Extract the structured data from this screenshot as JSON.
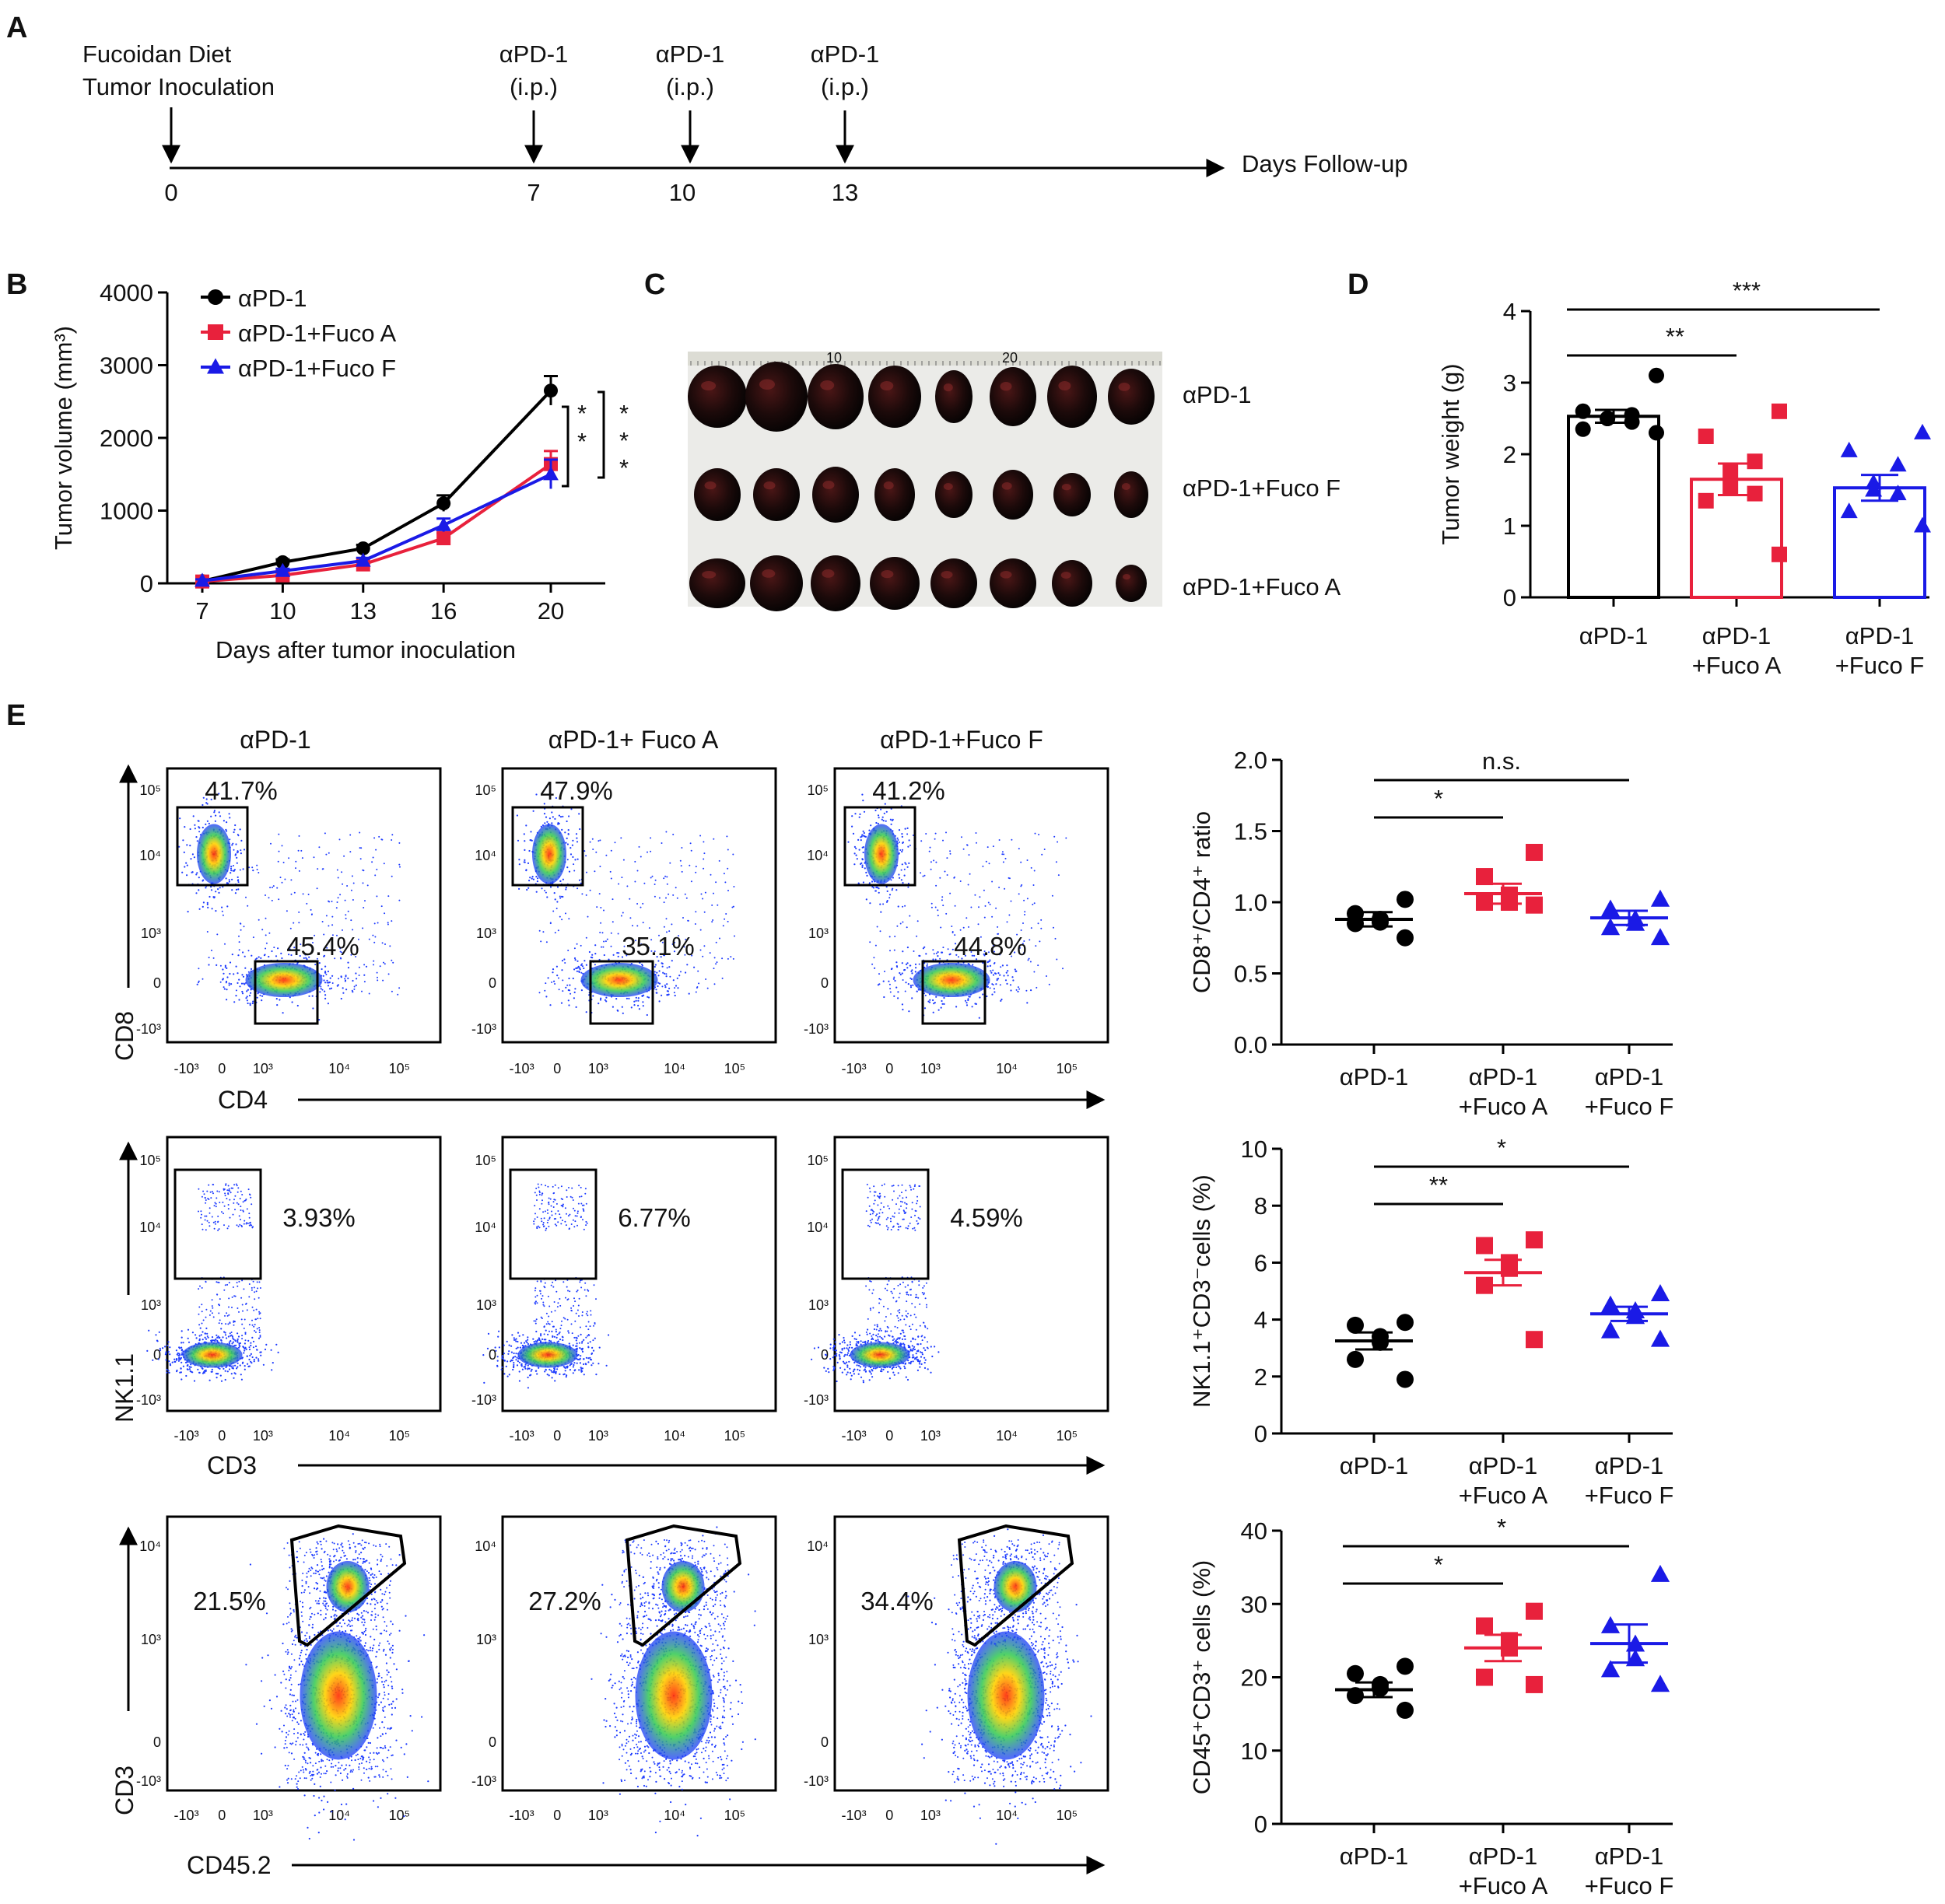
{
  "colors": {
    "control": "#000000",
    "fuco_a": "#e8213c",
    "fuco_f": "#1a1ae6",
    "photo_bg": "#ebebe8",
    "flow_low": "#1e3cff",
    "flow_high": "#ff2a00"
  },
  "panelA": {
    "label": "A",
    "left_text_1": "Fucoidan Diet",
    "left_text_2": "Tumor Inoculation",
    "events": [
      {
        "day": "0",
        "line1": "",
        "line2": ""
      },
      {
        "day": "7",
        "line1": "αPD-1",
        "line2": "(i.p.)"
      },
      {
        "day": "10",
        "line1": "αPD-1",
        "line2": "(i.p.)"
      },
      {
        "day": "13",
        "line1": "αPD-1",
        "line2": "(i.p.)"
      }
    ],
    "axis_label": "Days Follow-up"
  },
  "panelC": {
    "label": "C",
    "rows": [
      "αPD-1",
      "αPD-1+Fuco F",
      "αPD-1+Fuco A"
    ],
    "ruler_marks": [
      "10",
      "20"
    ]
  },
  "panelE": {
    "label": "E",
    "groups": [
      "αPD-1",
      "αPD-1+ Fuco A",
      "αPD-1+Fuco F"
    ],
    "row1": {
      "y_axis": "CD8",
      "x_axis": "CD4",
      "upper_pct": [
        "41.7%",
        "47.9%",
        "41.2%"
      ],
      "lower_pct": [
        "45.4%",
        "35.1%",
        "44.8%"
      ]
    },
    "row2": {
      "y_axis": "NK1.1",
      "x_axis": "CD3",
      "pct": [
        "3.93%",
        "6.77%",
        "4.59%"
      ]
    },
    "row3": {
      "y_axis": "CD3",
      "x_axis": "CD45.2",
      "pct": [
        "21.5%",
        "27.2%",
        "34.4%"
      ]
    },
    "ticks": {
      "x": [
        "-10³",
        "0",
        "10³",
        "10⁴",
        "10⁵"
      ],
      "y5": [
        "10⁵",
        "10⁴",
        "10³",
        "0",
        "-10³"
      ],
      "y4": [
        "10⁴",
        "10³",
        "0",
        "-10³"
      ]
    }
  },
  "chart_data": [
    {
      "id": "B",
      "type": "line",
      "label": "B",
      "title": "",
      "xlabel": "Days after tumor inoculation",
      "ylabel": "Tumor volume (mm³)",
      "x": [
        7,
        10,
        13,
        16,
        20
      ],
      "xticks": [
        "7",
        "10",
        "13",
        "16",
        "20"
      ],
      "ylim": [
        0,
        4000
      ],
      "yticks": [
        "0",
        "1000",
        "2000",
        "3000",
        "4000"
      ],
      "series": [
        {
          "name": "αPD-1",
          "color": "#000000",
          "marker": "circle",
          "values": [
            30,
            290,
            480,
            1100,
            2650
          ],
          "errors": [
            20,
            40,
            50,
            110,
            200
          ]
        },
        {
          "name": "αPD-1+Fuco A",
          "color": "#e8213c",
          "marker": "square",
          "values": [
            25,
            110,
            260,
            620,
            1640
          ],
          "errors": [
            15,
            25,
            40,
            70,
            180
          ]
        },
        {
          "name": "αPD-1+Fuco F",
          "color": "#1a1ae6",
          "marker": "triangle",
          "values": [
            35,
            170,
            310,
            800,
            1500
          ],
          "errors": [
            20,
            30,
            40,
            90,
            200
          ]
        }
      ],
      "legend": "top-left",
      "significance": [
        "* *",
        "* * *"
      ]
    },
    {
      "id": "D",
      "type": "bar",
      "label": "D",
      "ylabel": "Tumor weight (g)",
      "ylim": [
        0,
        4
      ],
      "yticks": [
        "0",
        "1",
        "2",
        "3",
        "4"
      ],
      "categories": [
        [
          "αPD-1"
        ],
        [
          "αPD-1",
          "+Fuco A"
        ],
        [
          "αPD-1",
          "+Fuco F"
        ]
      ],
      "colors": [
        "#000000",
        "#e8213c",
        "#1a1ae6"
      ],
      "markers": [
        "circle",
        "square",
        "triangle"
      ],
      "means": [
        2.53,
        1.65,
        1.53
      ],
      "sem": [
        0.09,
        0.22,
        0.18
      ],
      "points": [
        [
          3.1,
          2.6,
          2.55,
          2.5,
          2.5,
          2.45,
          2.35,
          2.3
        ],
        [
          2.6,
          2.25,
          1.9,
          1.75,
          1.55,
          1.45,
          1.35,
          0.6
        ],
        [
          2.3,
          2.05,
          1.85,
          1.6,
          1.5,
          1.45,
          1.2,
          1.0
        ]
      ],
      "comparisons": [
        {
          "from": 0,
          "to": 1,
          "label": "**"
        },
        {
          "from": 0,
          "to": 2,
          "label": "***"
        }
      ]
    },
    {
      "id": "E1",
      "type": "scatter",
      "ylabel": "CD8⁺/CD4⁺ ratio",
      "ylim": [
        0,
        2
      ],
      "yticks": [
        "0.0",
        "0.5",
        "1.0",
        "1.5",
        "2.0"
      ],
      "categories": [
        [
          "αPD-1"
        ],
        [
          "αPD-1",
          "+Fuco A"
        ],
        [
          "αPD-1",
          "+Fuco F"
        ]
      ],
      "colors": [
        "#000000",
        "#e8213c",
        "#1a1ae6"
      ],
      "markers": [
        "circle",
        "square",
        "triangle"
      ],
      "means": [
        0.88,
        1.06,
        0.89
      ],
      "sem": [
        0.05,
        0.07,
        0.05
      ],
      "points": [
        [
          1.02,
          0.92,
          0.88,
          0.86,
          0.85,
          0.75
        ],
        [
          1.35,
          1.18,
          1.05,
          1.0,
          1.0,
          0.98
        ],
        [
          1.02,
          0.95,
          0.88,
          0.85,
          0.82,
          0.75
        ]
      ],
      "comparisons": [
        {
          "from": 0,
          "to": 1,
          "label": "*"
        },
        {
          "from": 0,
          "to": 2,
          "label": "n.s."
        }
      ]
    },
    {
      "id": "E2",
      "type": "scatter",
      "ylabel": "NK1.1⁺CD3⁻cells (%)",
      "ylim": [
        0,
        10
      ],
      "yticks": [
        "0",
        "2",
        "4",
        "6",
        "8",
        "10"
      ],
      "categories": [
        [
          "αPD-1"
        ],
        [
          "αPD-1",
          "+Fuco A"
        ],
        [
          "αPD-1",
          "+Fuco F"
        ]
      ],
      "colors": [
        "#000000",
        "#e8213c",
        "#1a1ae6"
      ],
      "markers": [
        "circle",
        "square",
        "triangle"
      ],
      "means": [
        3.25,
        5.65,
        4.2
      ],
      "sem": [
        0.3,
        0.45,
        0.25
      ],
      "points": [
        [
          3.9,
          3.8,
          3.4,
          3.2,
          2.6,
          1.9
        ],
        [
          6.8,
          6.6,
          6.0,
          5.8,
          5.2,
          3.3
        ],
        [
          4.9,
          4.5,
          4.3,
          4.1,
          3.6,
          3.3
        ]
      ],
      "comparisons": [
        {
          "from": 0,
          "to": 1,
          "label": "**"
        },
        {
          "from": 0,
          "to": 2,
          "label": "*"
        }
      ]
    },
    {
      "id": "E3",
      "type": "scatter",
      "ylabel": "CD45⁺CD3⁺ cells (%)",
      "ylim": [
        0,
        40
      ],
      "yticks": [
        "0",
        "10",
        "20",
        "30",
        "40"
      ],
      "categories": [
        [
          "αPD-1"
        ],
        [
          "αPD-1",
          "+Fuco A"
        ],
        [
          "αPD-1",
          "+Fuco F"
        ]
      ],
      "colors": [
        "#000000",
        "#e8213c",
        "#1a1ae6"
      ],
      "markers": [
        "circle",
        "square",
        "triangle"
      ],
      "means": [
        18.3,
        24.0,
        24.6
      ],
      "sem": [
        1.0,
        1.8,
        2.6
      ],
      "points": [
        [
          21.5,
          20.5,
          19.0,
          18.5,
          17.5,
          15.5
        ],
        [
          29.0,
          27.0,
          25.0,
          24.0,
          20.0,
          19.0
        ],
        [
          34.0,
          27.0,
          24.5,
          22.5,
          21.0,
          19.0
        ]
      ],
      "comparisons": [
        {
          "from": 0,
          "to": 1,
          "label": "*"
        },
        {
          "from": 0,
          "to": 2,
          "label": "*"
        }
      ]
    }
  ]
}
